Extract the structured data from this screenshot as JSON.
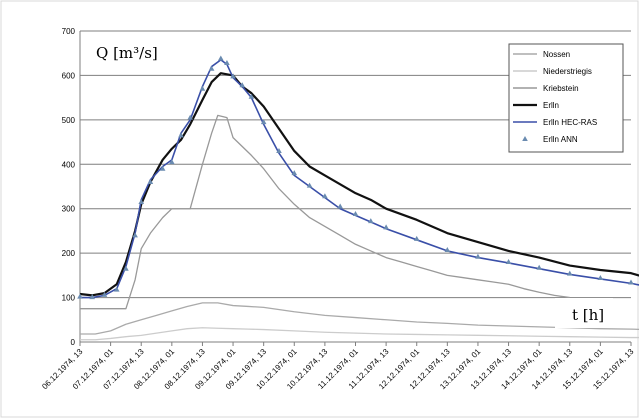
{
  "chart_data": {
    "type": "line",
    "ylabel": "Q [m³/s]",
    "xlabel": "t [h]",
    "ylim": [
      0,
      700
    ],
    "yticks": [
      0,
      100,
      200,
      300,
      400,
      500,
      600,
      700
    ],
    "x_ticks": [
      "06.12.1974, 13",
      "07.12.1974, 01",
      "07.12.1974, 13",
      "08.12.1974, 01",
      "08.12.1974, 13",
      "09.12.1974, 01",
      "09.12.1974, 13",
      "10.12.1974, 01",
      "10.12.1974, 13",
      "11.12.1974, 01",
      "11.12.1974, 13",
      "12.12.1974, 01",
      "12.12.1974, 13",
      "13.12.1974, 01",
      "13.12.1974, 13",
      "14.12.1974, 01",
      "14.12.1974, 13",
      "15.12.1974, 01",
      "15.12.1974, 13"
    ],
    "grid": "horizontal",
    "legend_position": "top-right",
    "series": [
      {
        "name": "Nossen",
        "color": "#aaaaaa",
        "style": "line",
        "x": [
          0,
          0.5,
          1,
          1.5,
          2,
          2.5,
          3,
          3.5,
          4,
          4.5,
          5,
          5.5,
          6,
          7,
          8,
          9,
          10,
          11,
          12,
          13,
          14,
          15,
          16,
          17,
          18,
          18.5
        ],
        "y": [
          18,
          18,
          25,
          40,
          50,
          60,
          70,
          80,
          88,
          88,
          82,
          80,
          78,
          68,
          60,
          55,
          50,
          45,
          42,
          38,
          36,
          34,
          32,
          30,
          29,
          28
        ]
      },
      {
        "name": "Niederstriegis",
        "color": "#cccccc",
        "style": "line",
        "x": [
          0,
          0.5,
          1,
          1.5,
          2,
          2.5,
          3,
          3.5,
          4,
          4.5,
          5,
          5.5,
          6,
          7,
          8,
          9,
          10,
          11,
          12,
          13,
          14,
          15,
          16,
          17,
          18,
          18.5
        ],
        "y": [
          5,
          5,
          8,
          12,
          15,
          20,
          25,
          30,
          32,
          31,
          30,
          29,
          28,
          25,
          22,
          20,
          18,
          17,
          16,
          15,
          14,
          13,
          12,
          11,
          10,
          10
        ]
      },
      {
        "name": "Kriebstein",
        "color": "#999999",
        "style": "line",
        "x": [
          0,
          0.3,
          0.6,
          0.9,
          1.2,
          1.5,
          1.8,
          2.0,
          2.3,
          2.7,
          3.0,
          3.3,
          3.6,
          4.0,
          4.3,
          4.5,
          4.8,
          5.0,
          5.3,
          5.6,
          6.0,
          6.5,
          7.0,
          7.5,
          8.0,
          8.5,
          9.0,
          9.5,
          10.0,
          10.5,
          11.0,
          11.5,
          12.0,
          12.5,
          13.0,
          13.5,
          14.0,
          14.5,
          15.0,
          15.5,
          16.0
        ],
        "y": [
          75,
          75,
          75,
          75,
          75,
          75,
          140,
          210,
          245,
          280,
          300,
          300,
          300,
          400,
          470,
          510,
          505,
          460,
          440,
          420,
          390,
          345,
          310,
          280,
          260,
          240,
          220,
          205,
          190,
          180,
          170,
          160,
          150,
          145,
          140,
          135,
          130,
          120,
          112,
          105,
          100
        ]
      },
      {
        "name": "Erlln",
        "color": "#111111",
        "style": "line",
        "x": [
          0,
          0.4,
          0.8,
          1.2,
          1.5,
          1.8,
          2.0,
          2.3,
          2.7,
          3.0,
          3.3,
          3.6,
          4.0,
          4.3,
          4.6,
          5.0,
          5.3,
          5.6,
          6.0,
          6.5,
          7.0,
          7.5,
          8.0,
          8.5,
          9.0,
          9.5,
          10.0,
          11.0,
          12.0,
          13.0,
          14.0,
          15.0,
          16.0,
          17.0,
          18.0,
          18.5
        ],
        "y": [
          108,
          105,
          110,
          130,
          180,
          250,
          310,
          360,
          410,
          435,
          455,
          490,
          545,
          585,
          605,
          600,
          575,
          560,
          530,
          480,
          430,
          395,
          375,
          355,
          335,
          320,
          300,
          275,
          245,
          225,
          205,
          190,
          172,
          162,
          155,
          145
        ]
      },
      {
        "name": "Erlln HEC-RAS",
        "color": "#3a4fa8",
        "style": "line",
        "x": [
          0,
          0.4,
          0.8,
          1.2,
          1.5,
          1.8,
          2.0,
          2.3,
          2.7,
          3.0,
          3.3,
          3.6,
          4.0,
          4.3,
          4.6,
          4.8,
          5.0,
          5.3,
          5.6,
          6.0,
          6.5,
          7.0,
          7.5,
          8.0,
          8.5,
          9.0,
          9.5,
          10.0,
          11.0,
          12.0,
          13.0,
          14.0,
          15.0,
          16.0,
          17.0,
          18.0,
          18.5
        ],
        "y": [
          100,
          100,
          105,
          120,
          170,
          245,
          320,
          365,
          395,
          410,
          470,
          500,
          575,
          620,
          635,
          625,
          595,
          575,
          550,
          490,
          425,
          375,
          350,
          325,
          300,
          285,
          270,
          255,
          230,
          205,
          190,
          178,
          165,
          152,
          142,
          132,
          125
        ]
      },
      {
        "name": "Erlln ANN",
        "color": "#6a8bb0",
        "style": "marker",
        "x": [
          0,
          0.4,
          0.8,
          1.2,
          1.5,
          1.8,
          2.0,
          2.3,
          2.7,
          3.0,
          3.3,
          3.6,
          4.0,
          4.3,
          4.6,
          4.8,
          5.0,
          5.3,
          5.6,
          6.0,
          6.5,
          7.0,
          7.5,
          8.0,
          8.5,
          9.0,
          9.5,
          10.0,
          11.0,
          12.0,
          13.0,
          14.0,
          15.0,
          16.0,
          17.0,
          18.0,
          18.5
        ],
        "y": [
          102,
          101,
          106,
          118,
          165,
          240,
          315,
          360,
          390,
          405,
          465,
          505,
          570,
          615,
          638,
          628,
          598,
          578,
          552,
          495,
          430,
          380,
          352,
          328,
          305,
          288,
          272,
          258,
          232,
          207,
          192,
          180,
          167,
          154,
          144,
          134,
          127
        ]
      }
    ]
  }
}
